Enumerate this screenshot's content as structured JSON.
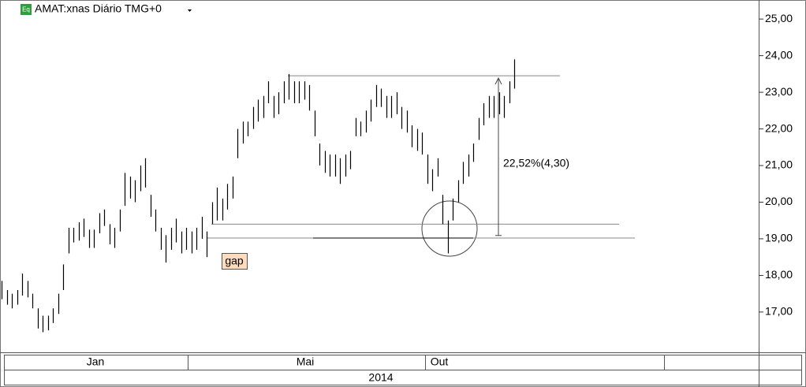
{
  "chart_data": {
    "type": "ohlc",
    "title": "AMAT:xnas Diário TMG+0",
    "icon": "Eq",
    "color": "#000000",
    "high": [
      17.85,
      17.6,
      17.5,
      17.6,
      18.05,
      17.85,
      17.5,
      17.1,
      16.9,
      16.9,
      17.1,
      17.5,
      18.3,
      19.3,
      19.3,
      19.45,
      19.55,
      19.25,
      19.25,
      19.7,
      19.8,
      19.4,
      19.3,
      19.8,
      20.8,
      20.7,
      20.6,
      21.0,
      21.2,
      20.2,
      19.8,
      19.3,
      19.1,
      19.3,
      19.55,
      19.2,
      19.3,
      19.2,
      19.3,
      19.6,
      19.2,
      20.0,
      20.4,
      20.1,
      20.5,
      20.7,
      22.0,
      22.2,
      22.2,
      22.6,
      22.8,
      22.9,
      23.3,
      22.9,
      23.0,
      23.3,
      23.5,
      23.3,
      23.3,
      23.3,
      23.2,
      22.5,
      21.6,
      21.4,
      21.3,
      21.3,
      21.2,
      21.3,
      21.4,
      22.3,
      22.2,
      22.5,
      22.8,
      23.2,
      23.1,
      22.9,
      22.9,
      23.0,
      22.6,
      22.5,
      22.1,
      22.0,
      21.9,
      21.3,
      20.9,
      21.2,
      20.2,
      19.5,
      20.1,
      20.6,
      21.1,
      21.3,
      21.6,
      22.3,
      22.7,
      22.9,
      22.9,
      23.0,
      22.9,
      23.3,
      23.9
    ],
    "low": [
      17.35,
      17.2,
      17.1,
      17.2,
      17.45,
      17.4,
      17.1,
      16.55,
      16.45,
      16.5,
      16.7,
      16.95,
      17.6,
      18.6,
      18.9,
      18.95,
      19.05,
      18.75,
      18.75,
      19.15,
      19.35,
      18.85,
      18.75,
      19.2,
      19.9,
      20.1,
      20.0,
      20.3,
      20.4,
      19.6,
      19.2,
      18.7,
      18.35,
      18.7,
      18.9,
      18.6,
      18.7,
      18.6,
      18.7,
      19.0,
      18.5,
      19.4,
      19.5,
      19.5,
      19.8,
      20.1,
      21.2,
      21.6,
      21.8,
      22.0,
      22.2,
      22.3,
      22.7,
      22.3,
      22.4,
      22.7,
      22.8,
      22.7,
      22.7,
      22.8,
      22.5,
      21.8,
      21.0,
      20.8,
      20.7,
      20.7,
      20.5,
      20.7,
      20.9,
      21.8,
      21.8,
      21.9,
      22.2,
      22.6,
      22.6,
      22.3,
      22.3,
      22.4,
      22.0,
      21.9,
      21.5,
      21.4,
      21.3,
      20.5,
      20.3,
      20.7,
      19.4,
      18.6,
      19.5,
      20.0,
      20.5,
      20.7,
      21.1,
      21.7,
      22.1,
      22.3,
      22.3,
      22.4,
      22.3,
      22.7,
      23.1
    ],
    "ylim": [
      15.9,
      25.52
    ],
    "yticks": [
      {
        "value": 17,
        "label": "17,00"
      },
      {
        "value": 18,
        "label": "18,00"
      },
      {
        "value": 19,
        "label": "19,00"
      },
      {
        "value": 20,
        "label": "20,00"
      },
      {
        "value": 21,
        "label": "21,00"
      },
      {
        "value": 22,
        "label": "22,00"
      },
      {
        "value": 23,
        "label": "23,00"
      },
      {
        "value": 24,
        "label": "24,00"
      },
      {
        "value": 25,
        "label": "25,00"
      }
    ],
    "periods": [
      "Jan",
      "Mai",
      "Out"
    ],
    "year": "2014",
    "reference_lines": [
      23.45,
      19.4,
      19.02
    ],
    "measure": {
      "from": 19.09,
      "to": 23.39,
      "label": "22,52%(4,30)"
    },
    "annotations": [
      "gap"
    ]
  }
}
